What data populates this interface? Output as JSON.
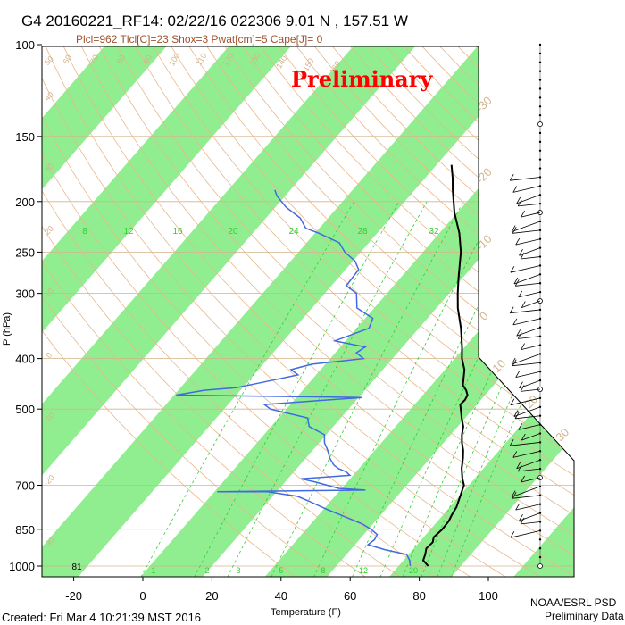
{
  "header": {
    "title": "G4 20160221_RF14: 02/22/16 022306   9.01 N , 157.51 W",
    "subtitle": "Plcl=962 Tlcl[C]=23 Shox=3 Pwat[cm]=5 Cape[J]= 0",
    "watermark": "Preliminary"
  },
  "footer": {
    "created": "Created: Fri Mar  4 10:21:39 MST 2016",
    "credit_line1": "NOAA/ESRL PSD",
    "credit_line2": "Preliminary Data"
  },
  "colors": {
    "band": "#90ee90",
    "dewpoint": "#4169e1",
    "temperature": "#000000",
    "isotherm": "#d2b48c",
    "mixing_ratio": "#32cd32",
    "adiabat": "#e8b88a",
    "watermark": "#ff0000"
  },
  "chart_data": {
    "type": "line",
    "subtype": "skew-T log-P diagram",
    "xlabel": "Temperature (F)",
    "ylabel": "P (hPa)",
    "x_ticks": [
      -20,
      0,
      20,
      40,
      60,
      80,
      100
    ],
    "y_ticks": [
      100,
      150,
      200,
      250,
      300,
      400,
      500,
      700,
      850,
      1000
    ],
    "y_scale": "log",
    "ylim": [
      1000,
      100
    ],
    "mixing_ratio_labels_top": [
      "8",
      "12",
      "16",
      "20",
      "24",
      "28",
      "32"
    ],
    "mixing_ratio_labels_bottom": [
      "1",
      "2",
      "3",
      "5",
      "8",
      "12",
      "20"
    ],
    "surface_label": "81",
    "isotherm_labels_left": [
      "50",
      "40",
      "30",
      "20",
      "10",
      "0",
      "-10",
      "-20",
      "-30"
    ],
    "isotherm_labels_right": [
      "-30",
      "-20",
      "-10",
      "0",
      "10",
      "20",
      "30"
    ],
    "adiabat_labels_top": [
      "60",
      "70",
      "80",
      "90",
      "100",
      "110",
      "120",
      "130",
      "140",
      "150",
      "160"
    ],
    "series": [
      {
        "name": "temperature",
        "points": [
          [
            1000,
            82.6
          ],
          [
            975,
            79.7
          ],
          [
            950,
            78.8
          ],
          [
            925,
            77.6
          ],
          [
            900,
            77.9
          ],
          [
            880,
            76.9
          ],
          [
            850,
            77.4
          ],
          [
            820,
            77.2
          ],
          [
            800,
            76.6
          ],
          [
            770,
            75.9
          ],
          [
            740,
            74.5
          ],
          [
            700,
            72.6
          ],
          [
            680,
            70.5
          ],
          [
            650,
            67.7
          ],
          [
            620,
            65.4
          ],
          [
            600,
            63.6
          ],
          [
            580,
            61.3
          ],
          [
            560,
            59.3
          ],
          [
            540,
            57.6
          ],
          [
            520,
            55.0
          ],
          [
            500,
            52.5
          ],
          [
            490,
            51.2
          ],
          [
            480,
            51.4
          ],
          [
            470,
            50.9
          ],
          [
            460,
            49.3
          ],
          [
            450,
            47.1
          ],
          [
            420,
            43.6
          ],
          [
            400,
            40.1
          ],
          [
            380,
            37.2
          ],
          [
            350,
            32.2
          ],
          [
            320,
            26.2
          ],
          [
            300,
            22.5
          ],
          [
            280,
            18.8
          ],
          [
            260,
            15.0
          ],
          [
            250,
            13.0
          ],
          [
            230,
            7.8
          ],
          [
            210,
            1.2
          ],
          [
            190,
            -5.0
          ],
          [
            180,
            -8.1
          ],
          [
            170,
            -11.7
          ]
        ]
      },
      {
        "name": "dewpoint",
        "points": [
          [
            1000,
            77.4
          ],
          [
            975,
            75.8
          ],
          [
            950,
            73.4
          ],
          [
            930,
            65.9
          ],
          [
            910,
            59.8
          ],
          [
            890,
            60.4
          ],
          [
            870,
            59.9
          ],
          [
            850,
            56.8
          ],
          [
            830,
            52.8
          ],
          [
            800,
            44.9
          ],
          [
            780,
            39.4
          ],
          [
            750,
            31.5
          ],
          [
            735,
            27.2
          ],
          [
            720,
            17.3
          ],
          [
            720,
            2.8
          ],
          [
            716,
            36.5
          ],
          [
            715,
            45.3
          ],
          [
            710,
            37.3
          ],
          [
            690,
            28.8
          ],
          [
            680,
            23.7
          ],
          [
            670,
            37.1
          ],
          [
            660,
            35.2
          ],
          [
            650,
            32.0
          ],
          [
            640,
            29.8
          ],
          [
            620,
            26.8
          ],
          [
            600,
            24.4
          ],
          [
            580,
            21.5
          ],
          [
            560,
            19.5
          ],
          [
            540,
            13.0
          ],
          [
            520,
            10.4
          ],
          [
            500,
            -2.6
          ],
          [
            490,
            -5.5
          ],
          [
            475,
            21.0
          ],
          [
            470,
            -33.4
          ],
          [
            460,
            -26.5
          ],
          [
            455,
            -17.9
          ],
          [
            440,
            -9.2
          ],
          [
            430,
            -3.2
          ],
          [
            420,
            -6.6
          ],
          [
            410,
            -1.9
          ],
          [
            400,
            11.6
          ],
          [
            390,
            8.1
          ],
          [
            380,
            9.2
          ],
          [
            370,
            -1.1
          ],
          [
            350,
            5.6
          ],
          [
            335,
            4.2
          ],
          [
            320,
            -3.0
          ],
          [
            300,
            -6.8
          ],
          [
            290,
            -11.7
          ],
          [
            270,
            -12.2
          ],
          [
            260,
            -15.4
          ],
          [
            250,
            -20.6
          ],
          [
            240,
            -24.5
          ],
          [
            230,
            -32.9
          ],
          [
            225,
            -37.9
          ],
          [
            215,
            -42.1
          ],
          [
            205,
            -48.9
          ],
          [
            195,
            -54.4
          ],
          [
            190,
            -56.5
          ]
        ]
      }
    ],
    "wind_barbs": "column of wind barbs along the right edge, 1000-100 hPa"
  }
}
